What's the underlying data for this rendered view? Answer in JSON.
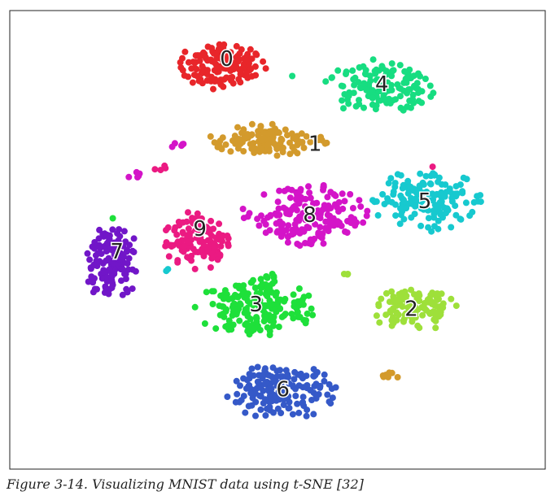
{
  "caption": "Figure 3-14. Visualizing MNIST data using t-SNE [32]",
  "chart_data": {
    "type": "scatter",
    "title": "",
    "xlabel": "",
    "ylabel": "",
    "grid": false,
    "axes_ticks": false,
    "legend": "none",
    "xlim": [
      0,
      100
    ],
    "ylim": [
      0,
      100
    ],
    "series": [
      {
        "label": "0",
        "color": "#e8262a",
        "center": [
          39.5,
          88.0
        ],
        "spread": [
          8.0,
          5.0
        ],
        "count": 140,
        "label_pos": [
          40.5,
          89.5
        ]
      },
      {
        "label": "1",
        "color": "#d39a2c",
        "center": [
          48.0,
          71.8
        ],
        "spread": [
          11.0,
          3.6
        ],
        "count": 120,
        "label_pos": [
          57.0,
          71.0
        ]
      },
      {
        "label": "2",
        "color": "#9ee03a",
        "center": [
          75.5,
          35.0
        ],
        "spread": [
          8.0,
          4.6
        ],
        "count": 120,
        "label_pos": [
          75.0,
          35.0
        ]
      },
      {
        "label": "3",
        "color": "#1ee03a",
        "center": [
          46.0,
          35.0
        ],
        "spread": [
          11.0,
          6.0
        ],
        "count": 200,
        "label_pos": [
          46.0,
          36.0
        ]
      },
      {
        "label": "4",
        "color": "#17dd81",
        "center": [
          69.0,
          83.5
        ],
        "spread": [
          10.0,
          6.0
        ],
        "count": 140,
        "label_pos": [
          69.5,
          84.0
        ]
      },
      {
        "label": "5",
        "color": "#17c9cf",
        "center": [
          78.0,
          58.5
        ],
        "spread": [
          10.5,
          6.5
        ],
        "count": 150,
        "label_pos": [
          77.5,
          58.5
        ]
      },
      {
        "label": "6",
        "color": "#3559c8",
        "center": [
          50.5,
          17.0
        ],
        "spread": [
          10.0,
          6.0
        ],
        "count": 170,
        "label_pos": [
          51.0,
          17.5
        ]
      },
      {
        "label": "7",
        "color": "#7116c8",
        "center": [
          19.0,
          45.0
        ],
        "spread": [
          5.2,
          8.5
        ],
        "count": 130,
        "label_pos": [
          20.0,
          47.5
        ]
      },
      {
        "label": "8",
        "color": "#d414c8",
        "center": [
          55.0,
          55.0
        ],
        "spread": [
          11.5,
          7.0
        ],
        "count": 170,
        "label_pos": [
          56.0,
          55.5
        ]
      },
      {
        "label": "9",
        "color": "#eb1a82",
        "center": [
          35.0,
          50.0
        ],
        "spread": [
          6.0,
          6.5
        ],
        "count": 120,
        "label_pos": [
          35.5,
          52.5
        ]
      }
    ],
    "extra_points": [
      {
        "color": "#d414c8",
        "at": [
          31.0,
          71.0
        ],
        "n": 5
      },
      {
        "color": "#d414c8",
        "at": [
          23.0,
          64.0
        ],
        "n": 5
      },
      {
        "color": "#eb1a82",
        "at": [
          28.0,
          66.0
        ],
        "n": 4
      },
      {
        "color": "#d39a2c",
        "at": [
          71.0,
          20.5
        ],
        "n": 8
      },
      {
        "color": "#17dd81",
        "at": [
          54.0,
          85.0
        ],
        "n": 1
      },
      {
        "color": "#1ee03a",
        "at": [
          48.0,
          42.0
        ],
        "n": 6
      },
      {
        "color": "#17c9cf",
        "at": [
          29.5,
          43.5
        ],
        "n": 2
      },
      {
        "color": "#eb1a82",
        "at": [
          79.0,
          65.5
        ],
        "n": 1
      },
      {
        "color": "#9ee03a",
        "at": [
          63.0,
          43.0
        ],
        "n": 3
      },
      {
        "color": "#1ee03a",
        "at": [
          18.0,
          55.0
        ],
        "n": 1
      }
    ]
  }
}
